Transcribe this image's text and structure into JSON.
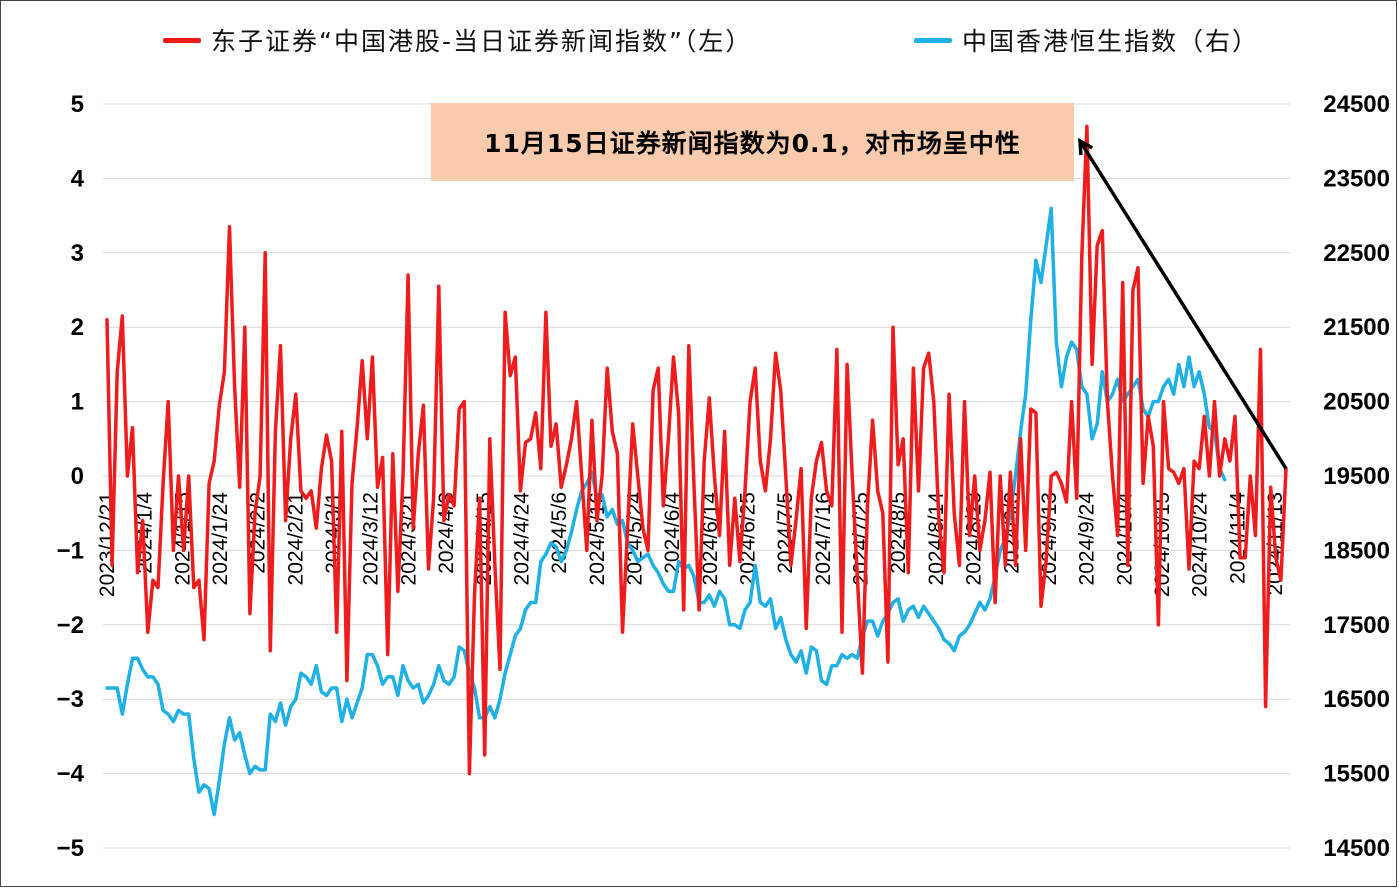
{
  "legend": {
    "left_label": "东子证券“中国港股-当日证券新闻指数”（左）",
    "right_label": "中国香港恒生指数（右）"
  },
  "annotation": "11月15日证券新闻指数为0.1，对市场呈中性",
  "colors": {
    "news_index": "#ee1c1c",
    "hsi": "#1fb0e6",
    "arrow": "#000000",
    "annotation_bg": "#f8cbad"
  },
  "chart_data": {
    "type": "line",
    "title": "",
    "y_left": {
      "min": -5,
      "max": 5,
      "ticks": [
        -5,
        -4,
        -3,
        -2,
        -1,
        0,
        1,
        2,
        3,
        4,
        5
      ]
    },
    "y_right": {
      "min": 14500,
      "max": 24500,
      "ticks": [
        14500,
        15500,
        16500,
        17500,
        18500,
        19500,
        20500,
        21500,
        22500,
        23500,
        24500
      ]
    },
    "x_tick_labels": [
      "2023/12/21",
      "2024/1/4",
      "2024/1/15",
      "2024/1/24",
      "2024/2/2",
      "2024/2/21",
      "2024/3/1",
      "2024/3/12",
      "2024/3/21",
      "2024/4/3",
      "2024/4/15",
      "2024/4/24",
      "2024/5/6",
      "2024/5/16",
      "2024/5/24",
      "2024/6/4",
      "2024/6/14",
      "2024/6/25",
      "2024/7/5",
      "2024/7/16",
      "2024/7/25",
      "2024/8/5",
      "2024/8/14",
      "2024/8/23",
      "2024/9/3",
      "2024/9/13",
      "2024/9/24",
      "2024/10/4",
      "2024/10/15",
      "2024/10/24",
      "2024/11/4",
      "2024/11/13"
    ],
    "series": [
      {
        "name": "东子证券“中国港股-当日证券新闻指数”（左）",
        "axis": "left",
        "values": [
          2.1,
          -1.2,
          1.4,
          2.15,
          0,
          0.65,
          -1.3,
          -0.6,
          -2.1,
          -1.4,
          -1.5,
          -0.1,
          1.0,
          -1.0,
          0.0,
          -1.0,
          0.0,
          -1.5,
          -1.4,
          -2.2,
          -0.1,
          0.2,
          0.95,
          1.4,
          3.35,
          1.2,
          -0.15,
          2.0,
          -1.85,
          -0.5,
          0.0,
          3.0,
          -2.35,
          0.6,
          1.75,
          -0.6,
          0.5,
          1.1,
          -0.2,
          -0.3,
          -0.2,
          -0.7,
          0.1,
          0.55,
          0.2,
          -2.1,
          0.6,
          -2.75,
          -0.1,
          0.65,
          1.55,
          0.5,
          1.6,
          -0.15,
          0.25,
          -2.4,
          0.3,
          -1.55,
          0.0,
          2.7,
          -0.7,
          0.3,
          0.95,
          -1.25,
          -0.3,
          2.55,
          -0.6,
          -0.25,
          -0.4,
          0.9,
          1.0,
          -4.0,
          -1.6,
          -0.3,
          -3.75,
          0.5,
          -1.2,
          -2.6,
          2.2,
          1.35,
          1.6,
          -0.2,
          0.45,
          0.5,
          0.85,
          0.1,
          2.2,
          0.4,
          0.7,
          -0.15,
          0.15,
          0.5,
          1.0,
          0.0,
          -1.0,
          0.75,
          -0.6,
          0.0,
          1.45,
          0.6,
          0.3,
          -2.1,
          -0.7,
          0.7,
          0.0,
          -0.7,
          -1.0,
          1.15,
          1.45,
          -0.4,
          0.5,
          1.6,
          0.85,
          -1.8,
          1.75,
          -0.1,
          -1.8,
          0.2,
          1.05,
          0.0,
          -0.8,
          0.6,
          -1.2,
          -0.3,
          -1.15,
          -0.2,
          1.0,
          1.45,
          0.2,
          -0.2,
          0.5,
          1.65,
          1.15,
          0.0,
          -1.2,
          -0.6,
          0.1,
          -2.05,
          -0.3,
          0.2,
          0.45,
          -0.2,
          -0.4,
          1.7,
          -2.1,
          1.5,
          0.0,
          -1.35,
          -2.65,
          -0.4,
          0.75,
          -0.2,
          -0.5,
          -2.5,
          2.0,
          0.15,
          0.5,
          -1.3,
          1.45,
          -0.2,
          1.45,
          1.65,
          1.0,
          -0.6,
          -1.3,
          1.1,
          -0.5,
          -1.2,
          1.0,
          -0.8,
          0.0,
          -1.0,
          -0.6,
          0.05,
          -1.7,
          0.0,
          -1.2,
          0.05,
          -1.2,
          0.5,
          -1.0,
          0.9,
          0.85,
          -1.75,
          -1.15,
          0.0,
          0.05,
          -0.1,
          -0.35,
          1.0,
          -0.3,
          2.95,
          4.7,
          1.5,
          3.1,
          3.3,
          1.0,
          0.0,
          -0.8,
          2.6,
          -1.2,
          2.5,
          2.8,
          -0.1,
          0.8,
          0.4,
          -2.0,
          1.0,
          0.1,
          0.05,
          -0.1,
          0.1,
          -1.25,
          0.2,
          0.1,
          0.8,
          0.0,
          1.0,
          0.0,
          0.5,
          0.2,
          0.8,
          -1.1,
          -1.1,
          0.0,
          -0.8,
          1.7,
          -3.1,
          -0.15,
          -1.1,
          -1.4,
          0.1
        ]
      },
      {
        "name": "中国香港恒生指数（右）",
        "axis": "right",
        "values": [
          16650,
          16650,
          16650,
          16300,
          16700,
          17050,
          17050,
          16900,
          16800,
          16800,
          16700,
          16350,
          16300,
          16200,
          16350,
          16300,
          16300,
          15700,
          15250,
          15350,
          15300,
          14950,
          15400,
          15900,
          16250,
          15950,
          16050,
          15750,
          15500,
          15600,
          15550,
          15550,
          16300,
          16200,
          16450,
          16150,
          16400,
          16500,
          16850,
          16800,
          16700,
          16950,
          16600,
          16550,
          16650,
          16650,
          16200,
          16500,
          16250,
          16450,
          16650,
          17100,
          17100,
          16950,
          16700,
          16800,
          16800,
          16550,
          16950,
          16750,
          16650,
          16700,
          16450,
          16550,
          16700,
          16950,
          16750,
          16700,
          16800,
          17200,
          17150,
          16850,
          16650,
          16250,
          16250,
          16400,
          16250,
          16500,
          16850,
          17100,
          17350,
          17450,
          17700,
          17800,
          17800,
          18350,
          18450,
          18600,
          18550,
          18350,
          18500,
          18750,
          19050,
          19300,
          19400,
          19550,
          19200,
          19250,
          18950,
          19050,
          18850,
          18900,
          18600,
          18500,
          18350,
          18400,
          18450,
          18300,
          18200,
          18050,
          17950,
          17950,
          18350,
          18250,
          18300,
          18150,
          17800,
          17800,
          17900,
          17750,
          17950,
          17850,
          17500,
          17500,
          17450,
          17700,
          17800,
          18300,
          17800,
          17750,
          17850,
          17450,
          17600,
          17300,
          17100,
          17000,
          17150,
          16850,
          17200,
          17150,
          16750,
          16700,
          16950,
          16950,
          17100,
          17050,
          17100,
          17050,
          17350,
          17550,
          17550,
          17350,
          17550,
          17650,
          17800,
          17850,
          17550,
          17700,
          17750,
          17600,
          17750,
          17650,
          17550,
          17450,
          17300,
          17250,
          17150,
          17350,
          17400,
          17500,
          17650,
          17800,
          17700,
          17850,
          18150,
          18500,
          18650,
          19000,
          19500,
          20100,
          20600,
          21600,
          22400,
          22100,
          22600,
          23100,
          21300,
          20700,
          21100,
          21300,
          21200,
          20700,
          20600,
          20000,
          20200,
          20900,
          20500,
          20600,
          20800,
          20500,
          20600,
          20700,
          20800,
          20400,
          20300,
          20500,
          20500,
          20700,
          20800,
          20600,
          21000,
          20700,
          21100,
          20700,
          20900,
          20600,
          20150,
          20100,
          19600,
          19450
        ]
      }
    ]
  }
}
